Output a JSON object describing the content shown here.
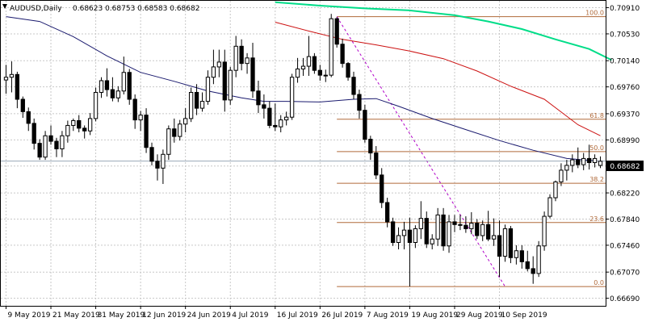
{
  "header": {
    "symbol_label": "AUDUSD,Daily",
    "ohlc_text": "0.68623 0.68753 0.68583 0.68682"
  },
  "price_label": "0.68682",
  "colors": {
    "background": "#ffffff",
    "grid": "#c8c8c8",
    "bull_candle": "#ffffff",
    "bear_candle": "#000000",
    "candle_outline": "#000000",
    "ma_fast": "#1a1a6e",
    "ma_mid": "#cc1111",
    "ma_slow": "#00dd88",
    "fib_line": "#b06a3a",
    "fib_trend": "#b000c8",
    "price_line": "#9aa8b8",
    "price_tag_bg": "#000000",
    "price_tag_text": "#ffffff",
    "axis_text": "#000000"
  },
  "chart_data": {
    "type": "candlestick",
    "instrument": "AUDUSD",
    "timeframe": "Daily",
    "ylim": [
      0.6658,
      0.7101
    ],
    "y_ticks": [
      "0.70910",
      "0.70530",
      "0.70140",
      "0.69760",
      "0.69370",
      "0.68990",
      "0.68610",
      "0.68220",
      "0.67840",
      "0.67460",
      "0.67070",
      "0.66690"
    ],
    "x_tick_labels": [
      {
        "label": "9 May 2019",
        "bar": 0
      },
      {
        "label": "21 May 2019",
        "bar": 8
      },
      {
        "label": "31 May 2019",
        "bar": 16
      },
      {
        "label": "12 Jun 2019",
        "bar": 24
      },
      {
        "label": "24 Jun 2019",
        "bar": 32
      },
      {
        "label": "4 Jul 2019",
        "bar": 40
      },
      {
        "label": "16 Jul 2019",
        "bar": 48
      },
      {
        "label": "26 Jul 2019",
        "bar": 56
      },
      {
        "label": "7 Aug 2019",
        "bar": 64
      },
      {
        "label": "19 Aug 2019",
        "bar": 72
      },
      {
        "label": "29 Aug 2019",
        "bar": 80
      },
      {
        "label": "10 Sep 2019",
        "bar": 88
      }
    ],
    "candles": [
      [
        0.6986,
        0.7008,
        0.6966,
        0.699
      ],
      [
        0.699,
        0.7013,
        0.6968,
        0.6994
      ],
      [
        0.6994,
        0.6998,
        0.6945,
        0.6958
      ],
      [
        0.6958,
        0.6962,
        0.6931,
        0.694
      ],
      [
        0.694,
        0.6946,
        0.6912,
        0.6923
      ],
      [
        0.6923,
        0.693,
        0.6885,
        0.6894
      ],
      [
        0.6894,
        0.69,
        0.687,
        0.6874
      ],
      [
        0.6874,
        0.6912,
        0.687,
        0.6905
      ],
      [
        0.6905,
        0.692,
        0.6892,
        0.6897
      ],
      [
        0.6897,
        0.6902,
        0.6874,
        0.6886
      ],
      [
        0.6886,
        0.6912,
        0.6874,
        0.6905
      ],
      [
        0.6905,
        0.6927,
        0.6895,
        0.692
      ],
      [
        0.692,
        0.693,
        0.6912,
        0.6927
      ],
      [
        0.6927,
        0.6935,
        0.691,
        0.6916
      ],
      [
        0.6916,
        0.692,
        0.6901,
        0.6912
      ],
      [
        0.6912,
        0.6938,
        0.6906,
        0.693
      ],
      [
        0.693,
        0.6975,
        0.6926,
        0.6968
      ],
      [
        0.6968,
        0.699,
        0.696,
        0.6985
      ],
      [
        0.6985,
        0.7003,
        0.6962,
        0.6972
      ],
      [
        0.6972,
        0.699,
        0.6955,
        0.696
      ],
      [
        0.696,
        0.6977,
        0.6954,
        0.697
      ],
      [
        0.697,
        0.702,
        0.6965,
        0.6997
      ],
      [
        0.6997,
        0.7002,
        0.695,
        0.6958
      ],
      [
        0.6958,
        0.6965,
        0.6915,
        0.6928
      ],
      [
        0.6928,
        0.6941,
        0.6912,
        0.6935
      ],
      [
        0.6935,
        0.6945,
        0.688,
        0.6888
      ],
      [
        0.6888,
        0.6895,
        0.6862,
        0.6868
      ],
      [
        0.6868,
        0.6878,
        0.684,
        0.6858
      ],
      [
        0.6858,
        0.6885,
        0.6835,
        0.6878
      ],
      [
        0.6878,
        0.692,
        0.687,
        0.6915
      ],
      [
        0.6915,
        0.693,
        0.6895,
        0.6904
      ],
      [
        0.6904,
        0.6928,
        0.6898,
        0.6922
      ],
      [
        0.6922,
        0.6945,
        0.691,
        0.693
      ],
      [
        0.693,
        0.6975,
        0.6925,
        0.6968
      ],
      [
        0.6968,
        0.698,
        0.6935,
        0.6945
      ],
      [
        0.6945,
        0.6968,
        0.694,
        0.6955
      ],
      [
        0.6955,
        0.7,
        0.695,
        0.699
      ],
      [
        0.699,
        0.703,
        0.698,
        0.7005
      ],
      [
        0.7005,
        0.703,
        0.699,
        0.7012
      ],
      [
        0.7012,
        0.703,
        0.694,
        0.6957
      ],
      [
        0.6957,
        0.7005,
        0.695,
        0.7
      ],
      [
        0.7,
        0.705,
        0.699,
        0.7035
      ],
      [
        0.7035,
        0.7045,
        0.7,
        0.701
      ],
      [
        0.701,
        0.7025,
        0.6995,
        0.7018
      ],
      [
        0.7018,
        0.704,
        0.696,
        0.697
      ],
      [
        0.697,
        0.6985,
        0.6938,
        0.695
      ],
      [
        0.695,
        0.6965,
        0.693,
        0.6945
      ],
      [
        0.6945,
        0.6955,
        0.6916,
        0.692
      ],
      [
        0.692,
        0.6952,
        0.6912,
        0.6918
      ],
      [
        0.6918,
        0.6935,
        0.691,
        0.6928
      ],
      [
        0.6928,
        0.694,
        0.692,
        0.6932
      ],
      [
        0.6932,
        0.6995,
        0.6928,
        0.699
      ],
      [
        0.699,
        0.7018,
        0.6982,
        0.7002
      ],
      [
        0.7002,
        0.7018,
        0.6992,
        0.7006
      ],
      [
        0.7006,
        0.705,
        0.6992,
        0.702
      ],
      [
        0.702,
        0.7025,
        0.6995,
        0.7
      ],
      [
        0.7,
        0.7008,
        0.6985,
        0.6993
      ],
      [
        0.6993,
        0.7001,
        0.6983,
        0.6993
      ],
      [
        0.6993,
        0.7082,
        0.699,
        0.7075
      ],
      [
        0.7075,
        0.7077,
        0.7033,
        0.7038
      ],
      [
        0.7038,
        0.7046,
        0.7004,
        0.701
      ],
      [
        0.701,
        0.7012,
        0.6985,
        0.699
      ],
      [
        0.699,
        0.6998,
        0.6958,
        0.6965
      ],
      [
        0.6965,
        0.6972,
        0.693,
        0.6942
      ],
      [
        0.6942,
        0.695,
        0.6895,
        0.69
      ],
      [
        0.69,
        0.6905,
        0.687,
        0.688
      ],
      [
        0.688,
        0.689,
        0.6842,
        0.6848
      ],
      [
        0.6848,
        0.6858,
        0.68,
        0.6808
      ],
      [
        0.6808,
        0.6815,
        0.6772,
        0.678
      ],
      [
        0.678,
        0.6786,
        0.6745,
        0.675
      ],
      [
        0.675,
        0.6772,
        0.674,
        0.676
      ],
      [
        0.676,
        0.678,
        0.674,
        0.6768
      ],
      [
        0.6768,
        0.6786,
        0.6686,
        0.675
      ],
      [
        0.675,
        0.6775,
        0.6742,
        0.677
      ],
      [
        0.677,
        0.681,
        0.6755,
        0.6785
      ],
      [
        0.6785,
        0.6795,
        0.6742,
        0.6748
      ],
      [
        0.6748,
        0.6762,
        0.674,
        0.6755
      ],
      [
        0.6755,
        0.68,
        0.6745,
        0.679
      ],
      [
        0.679,
        0.68,
        0.6738,
        0.6745
      ],
      [
        0.6745,
        0.679,
        0.6735,
        0.678
      ],
      [
        0.678,
        0.679,
        0.6765,
        0.6776
      ],
      [
        0.6776,
        0.679,
        0.6768,
        0.6775
      ],
      [
        0.6775,
        0.6788,
        0.6764,
        0.677
      ],
      [
        0.677,
        0.6794,
        0.6762,
        0.6778
      ],
      [
        0.6778,
        0.6784,
        0.6755,
        0.676
      ],
      [
        0.676,
        0.6782,
        0.6752,
        0.6776
      ],
      [
        0.6776,
        0.6796,
        0.6752,
        0.6755
      ],
      [
        0.6755,
        0.6785,
        0.6745,
        0.676
      ],
      [
        0.676,
        0.6782,
        0.67,
        0.673
      ],
      [
        0.673,
        0.6776,
        0.6722,
        0.677
      ],
      [
        0.677,
        0.6774,
        0.672,
        0.6728
      ],
      [
        0.6728,
        0.6746,
        0.6718,
        0.6738
      ],
      [
        0.6738,
        0.6746,
        0.6712,
        0.6722
      ],
      [
        0.6722,
        0.6738,
        0.6708,
        0.6712
      ],
      [
        0.6712,
        0.673,
        0.669,
        0.6705
      ],
      [
        0.6705,
        0.6752,
        0.67,
        0.6745
      ],
      [
        0.6745,
        0.6795,
        0.6738,
        0.6788
      ],
      [
        0.6788,
        0.682,
        0.6785,
        0.6815
      ],
      [
        0.6815,
        0.684,
        0.681,
        0.6838
      ],
      [
        0.6838,
        0.6865,
        0.6832,
        0.6855
      ],
      [
        0.6855,
        0.687,
        0.684,
        0.6862
      ],
      [
        0.6862,
        0.6878,
        0.6852,
        0.687
      ],
      [
        0.687,
        0.6888,
        0.6858,
        0.6863
      ],
      [
        0.6863,
        0.688,
        0.6855,
        0.6872
      ],
      [
        0.6872,
        0.6892,
        0.6856,
        0.6866
      ],
      [
        0.6866,
        0.6878,
        0.6859,
        0.6872
      ],
      [
        0.6862,
        0.6875,
        0.6858,
        0.6868
      ]
    ],
    "moving_averages": [
      {
        "color": "#1a1a6e",
        "points": [
          [
            0,
            0.7078
          ],
          [
            6,
            0.7071
          ],
          [
            12,
            0.7049
          ],
          [
            18,
            0.7021
          ],
          [
            24,
            0.6997
          ],
          [
            30,
            0.6984
          ],
          [
            36,
            0.697
          ],
          [
            42,
            0.696
          ],
          [
            46,
            0.6955
          ],
          [
            50,
            0.6955
          ],
          [
            56,
            0.6954
          ],
          [
            62,
            0.6958
          ],
          [
            66,
            0.6959
          ],
          [
            70,
            0.6948
          ],
          [
            76,
            0.693
          ],
          [
            82,
            0.6914
          ],
          [
            88,
            0.6898
          ],
          [
            94,
            0.6884
          ],
          [
            100,
            0.6872
          ],
          [
            106,
            0.6868
          ]
        ]
      },
      {
        "color": "#cc1111",
        "points": [
          [
            48,
            0.707
          ],
          [
            54,
            0.7057
          ],
          [
            60,
            0.7045
          ],
          [
            66,
            0.7037
          ],
          [
            72,
            0.7028
          ],
          [
            78,
            0.7017
          ],
          [
            84,
            0.6999
          ],
          [
            90,
            0.6977
          ],
          [
            96,
            0.6958
          ],
          [
            102,
            0.6921
          ],
          [
            106,
            0.6905
          ]
        ]
      },
      {
        "color": "#00dd88",
        "points": [
          [
            48,
            0.7099
          ],
          [
            56,
            0.7094
          ],
          [
            64,
            0.709
          ],
          [
            72,
            0.7087
          ],
          [
            80,
            0.708
          ],
          [
            86,
            0.7071
          ],
          [
            92,
            0.706
          ],
          [
            98,
            0.7045
          ],
          [
            104,
            0.7031
          ],
          [
            108,
            0.7015
          ]
        ]
      }
    ],
    "fibonacci": {
      "high": 0.7078,
      "low": 0.6686,
      "levels": [
        {
          "label": "100.0",
          "value": 0.7078
        },
        {
          "label": "61.8",
          "value": 0.6929
        },
        {
          "label": "50.0",
          "value": 0.6882
        },
        {
          "label": "38.2",
          "value": 0.6836
        },
        {
          "label": "23.6",
          "value": 0.6779
        },
        {
          "label": "0.0",
          "value": 0.6686
        }
      ],
      "start_bar": 59,
      "trend_from_bar": 59,
      "trend_to_bar": 89
    },
    "current_price": 0.68682
  }
}
